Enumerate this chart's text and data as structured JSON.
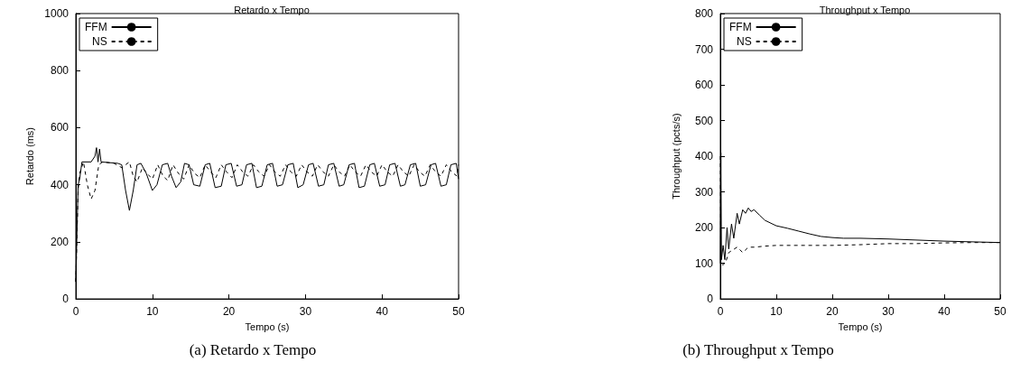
{
  "chart_data": [
    {
      "type": "line",
      "title": "Retardo x Tempo",
      "xlabel": "Tempo (s)",
      "ylabel": "Retardo (ms)",
      "xlim": [
        0,
        50
      ],
      "xticks": [
        0,
        10,
        20,
        30,
        40,
        50
      ],
      "ylim": [
        0,
        1000
      ],
      "yticks": [
        0,
        200,
        400,
        600,
        800,
        1000
      ],
      "grid": false,
      "legend": "top left",
      "marker": "none",
      "annotations": [
        "(a)  Retardo x Tempo"
      ],
      "series": [
        {
          "name": "FFM",
          "color": "#000000",
          "line_style": "solid",
          "x": [
            0,
            0.3,
            0.5,
            0.8,
            2,
            2.5,
            2.7,
            2.9,
            3.1,
            3.3,
            5.5,
            6,
            6.5,
            7,
            7.5,
            8,
            8.5,
            9.2,
            10,
            10.6,
            11.3,
            12,
            12.5,
            13.1,
            13.7,
            14.2,
            14.8,
            15.4,
            16.2,
            16.9,
            17.5,
            18.2,
            19,
            19.6,
            20.3,
            21,
            21.7,
            22.3,
            23,
            23.6,
            24.3,
            25,
            25.7,
            26.3,
            27,
            27.7,
            28.4,
            29,
            29.7,
            30.4,
            31,
            31.7,
            32.4,
            33,
            33.7,
            34.4,
            35,
            35.7,
            36.4,
            37,
            37.7,
            38.4,
            39,
            39.7,
            40.4,
            41,
            41.7,
            42.4,
            43,
            43.7,
            44.4,
            45,
            45.7,
            46.4,
            47,
            47.7,
            48.4,
            49,
            49.7,
            50
          ],
          "values": [
            60,
            400,
            420,
            480,
            480,
            500,
            530,
            480,
            525,
            480,
            475,
            470,
            380,
            310,
            380,
            470,
            475,
            440,
            380,
            400,
            470,
            475,
            430,
            390,
            410,
            475,
            470,
            400,
            395,
            470,
            475,
            390,
            395,
            470,
            475,
            395,
            400,
            470,
            475,
            390,
            395,
            470,
            475,
            395,
            400,
            470,
            475,
            390,
            400,
            470,
            475,
            395,
            400,
            470,
            475,
            395,
            400,
            470,
            475,
            390,
            395,
            470,
            475,
            395,
            400,
            470,
            475,
            395,
            400,
            470,
            475,
            395,
            400,
            470,
            475,
            395,
            400,
            470,
            475,
            420
          ]
        },
        {
          "name": "NS",
          "color": "#000000",
          "line_style": "dashed",
          "x": [
            0,
            0.3,
            0.5,
            1,
            1.5,
            2,
            2.5,
            3,
            3.5,
            5,
            6,
            7,
            7.5,
            8,
            8.7,
            9.3,
            10,
            10.7,
            11.4,
            12,
            12.7,
            13.4,
            14.1,
            14.8,
            15.5,
            16.2,
            16.9,
            17.6,
            18.3,
            19,
            19.7,
            20.4,
            21.1,
            21.8,
            22.5,
            23.2,
            23.9,
            24.6,
            25.3,
            26,
            26.7,
            27.4,
            28.1,
            28.8,
            29.5,
            30.2,
            30.9,
            31.6,
            32.3,
            33,
            33.7,
            34.4,
            35.1,
            35.8,
            36.5,
            37.2,
            37.9,
            38.6,
            39.3,
            40,
            40.7,
            41.4,
            42.1,
            42.8,
            43.5,
            44.2,
            44.9,
            45.6,
            46.3,
            47,
            47.7,
            48.4,
            49.1,
            49.8,
            50
          ],
          "values": [
            60,
            380,
            440,
            480,
            400,
            350,
            380,
            470,
            480,
            475,
            460,
            480,
            430,
            410,
            460,
            440,
            420,
            470,
            430,
            415,
            470,
            440,
            420,
            470,
            440,
            425,
            470,
            445,
            425,
            470,
            445,
            425,
            470,
            445,
            430,
            470,
            445,
            430,
            470,
            445,
            430,
            470,
            445,
            430,
            470,
            445,
            430,
            470,
            445,
            430,
            470,
            445,
            430,
            470,
            445,
            430,
            470,
            445,
            430,
            470,
            445,
            430,
            470,
            445,
            430,
            470,
            445,
            430,
            470,
            445,
            430,
            470,
            445,
            430,
            470
          ]
        }
      ]
    },
    {
      "type": "line",
      "title": "Throughput x Tempo",
      "xlabel": "Tempo (s)",
      "ylabel": "Throughput (pcts/s)",
      "xlim": [
        0,
        50
      ],
      "xticks": [
        0,
        10,
        20,
        30,
        40,
        50
      ],
      "ylim": [
        0,
        800
      ],
      "yticks": [
        0,
        100,
        200,
        300,
        400,
        500,
        600,
        700,
        800
      ],
      "grid": false,
      "legend": "top left",
      "marker": "none",
      "annotations": [
        "(b)  Throughput x Tempo"
      ],
      "series": [
        {
          "name": "FFM",
          "color": "#000000",
          "line_style": "solid",
          "x": [
            0,
            0.1,
            0.2,
            0.5,
            0.8,
            1.2,
            1.5,
            2,
            2.4,
            3,
            3.4,
            4,
            4.5,
            5,
            5.5,
            6,
            7,
            8,
            10,
            12,
            14,
            16,
            18,
            20,
            22,
            25,
            30,
            35,
            40,
            45,
            50
          ],
          "values": [
            100,
            410,
            110,
            150,
            110,
            200,
            140,
            210,
            170,
            240,
            210,
            250,
            240,
            255,
            245,
            250,
            235,
            220,
            205,
            198,
            190,
            182,
            175,
            172,
            170,
            170,
            168,
            165,
            162,
            160,
            158
          ]
        },
        {
          "name": "NS",
          "color": "#000000",
          "line_style": "dashed",
          "x": [
            0,
            0.1,
            0.5,
            1,
            1.5,
            2,
            3,
            4,
            5,
            6,
            8,
            10,
            15,
            20,
            25,
            30,
            35,
            40,
            45,
            50
          ],
          "values": [
            400,
            100,
            95,
            105,
            130,
            135,
            145,
            130,
            145,
            145,
            148,
            150,
            150,
            150,
            152,
            155,
            155,
            157,
            158,
            158
          ]
        }
      ]
    }
  ]
}
